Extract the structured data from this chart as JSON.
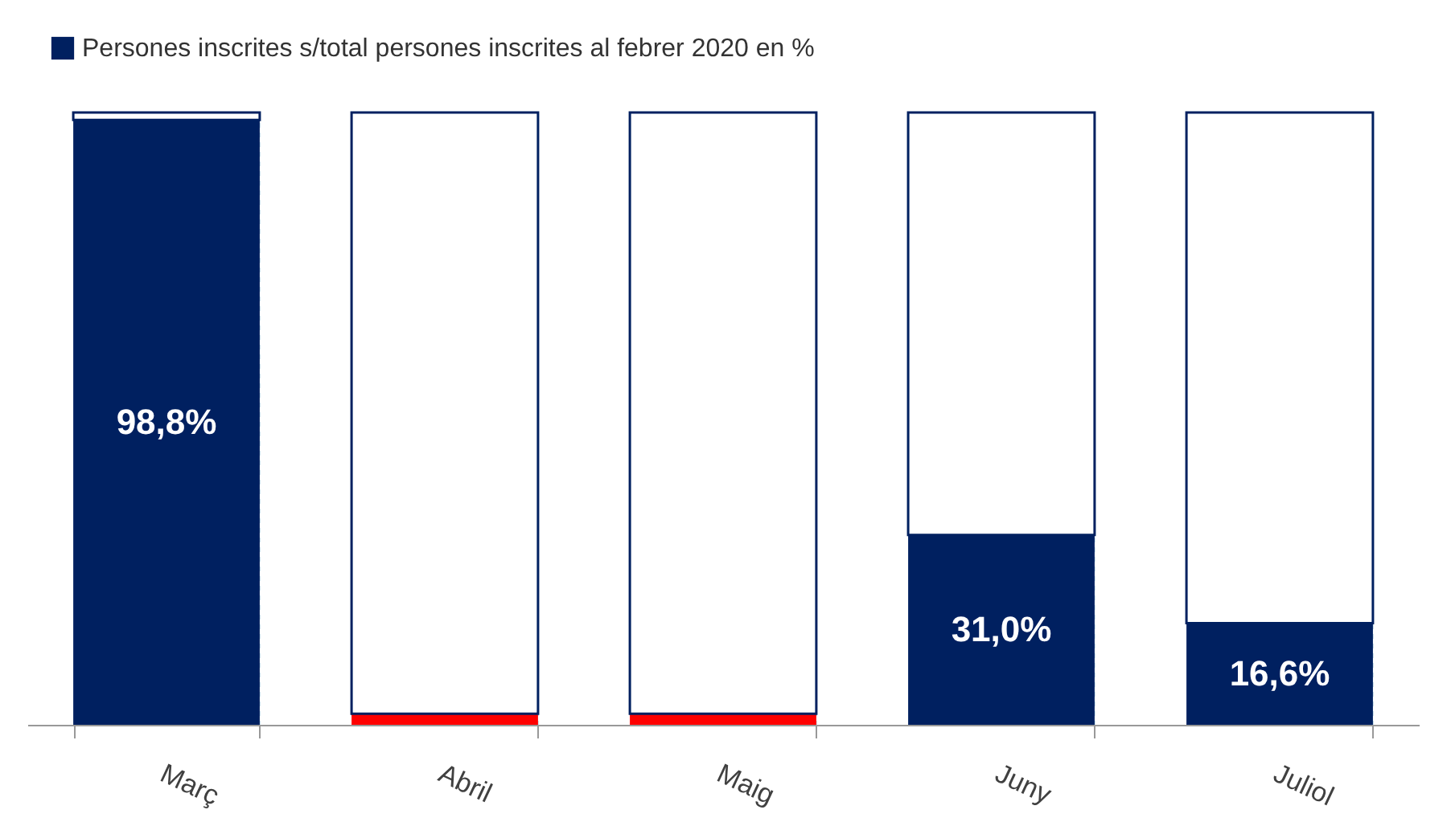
{
  "chart_data": {
    "type": "bar",
    "stacked": true,
    "categories": [
      "Març",
      "Abril",
      "Maig",
      "Juny",
      "Juliol"
    ],
    "series": [
      {
        "name": "Persones inscrites s/total persones inscrites al febrer 2020 en %",
        "color": "#002060",
        "colors": [
          "#002060",
          "#ff0000",
          "#ff0000",
          "#002060",
          "#002060"
        ],
        "values": [
          98.8,
          1.8,
          1.8,
          31.0,
          16.6
        ],
        "value_labels": [
          "98,8%",
          null,
          null,
          "31,0%",
          "16,6%"
        ]
      },
      {
        "color": "#ffffff",
        "values": [
          1.2,
          98.2,
          98.2,
          69.0,
          83.4
        ]
      }
    ],
    "ylim": [
      0,
      100
    ],
    "grid": "x",
    "legend": "top",
    "tick_labels": "x"
  }
}
